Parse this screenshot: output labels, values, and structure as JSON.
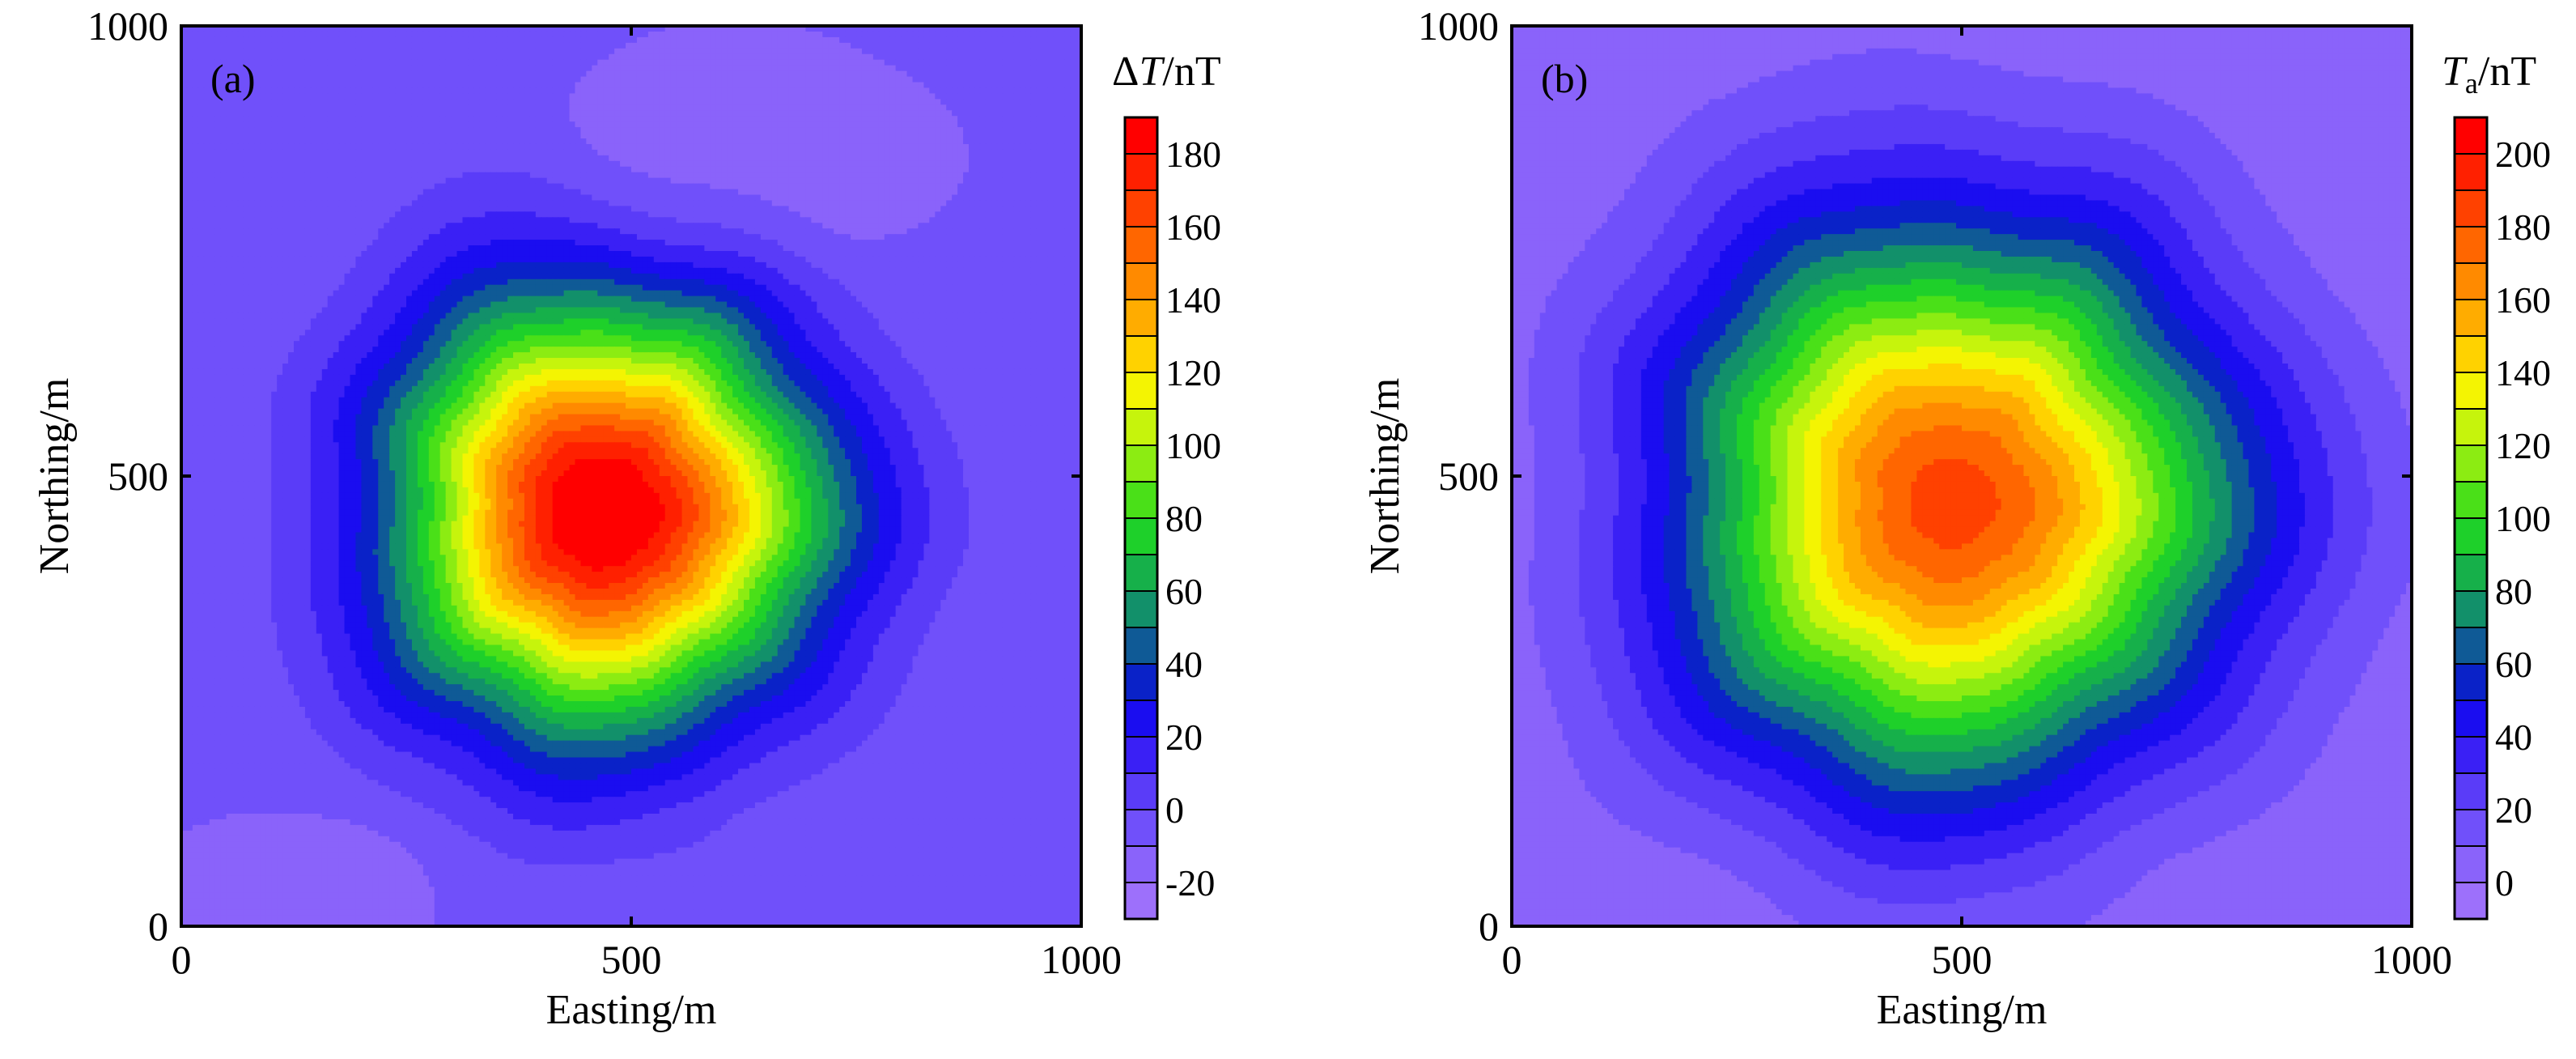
{
  "chart_data": [
    {
      "type": "heatmap",
      "panel_label": "(a)",
      "xlabel": "Easting/m",
      "ylabel": "Northing/m",
      "xlim": [
        0,
        1000
      ],
      "ylim": [
        0,
        1000
      ],
      "xticks": [
        "0",
        "500",
        "1000"
      ],
      "yticks": [
        "0",
        "500",
        "1000"
      ],
      "colorbar": {
        "title_prefix": "Δ",
        "title_var": "T",
        "title_sub": "",
        "title_unit": "/nT",
        "min": -30,
        "max": 190,
        "step": 10,
        "ticks": [
          "-20",
          "0",
          "20",
          "40",
          "60",
          "80",
          "100",
          "120",
          "140",
          "160",
          "180"
        ],
        "tick_values": [
          -20,
          0,
          20,
          40,
          60,
          80,
          100,
          120,
          140,
          160,
          180
        ]
      },
      "features": [
        {
          "kind": "peak",
          "x": 470,
          "y": 460,
          "value": 185,
          "radius": 220
        },
        {
          "kind": "positive-rim",
          "x": 460,
          "y": 470,
          "value": 0,
          "radius": 410
        },
        {
          "kind": "negative-zone",
          "x": 600,
          "y": 830,
          "value": -20
        },
        {
          "kind": "negative-zone",
          "x": 140,
          "y": 40,
          "value": -20
        }
      ],
      "background_value": -10
    },
    {
      "type": "heatmap",
      "panel_label": "(b)",
      "xlabel": "Easting/m",
      "ylabel": "Northing/m",
      "xlim": [
        0,
        1000
      ],
      "ylim": [
        0,
        1000
      ],
      "xticks": [
        "0",
        "500",
        "1000"
      ],
      "yticks": [
        "0",
        "500",
        "1000"
      ],
      "colorbar": {
        "title_prefix": "",
        "title_var": "T",
        "title_sub": "a",
        "title_unit": "/nT",
        "min": -10,
        "max": 210,
        "step": 10,
        "ticks": [
          "0",
          "20",
          "40",
          "60",
          "80",
          "100",
          "120",
          "140",
          "160",
          "180",
          "200"
        ],
        "tick_values": [
          0,
          20,
          40,
          60,
          80,
          100,
          120,
          140,
          160,
          180,
          200
        ]
      },
      "features": [
        {
          "kind": "peak",
          "x": 490,
          "y": 470,
          "value": 175,
          "radius": 290
        },
        {
          "kind": "positive-rim",
          "x": 500,
          "y": 500,
          "value": 10,
          "radius": 500
        }
      ],
      "background_value": 0
    }
  ]
}
